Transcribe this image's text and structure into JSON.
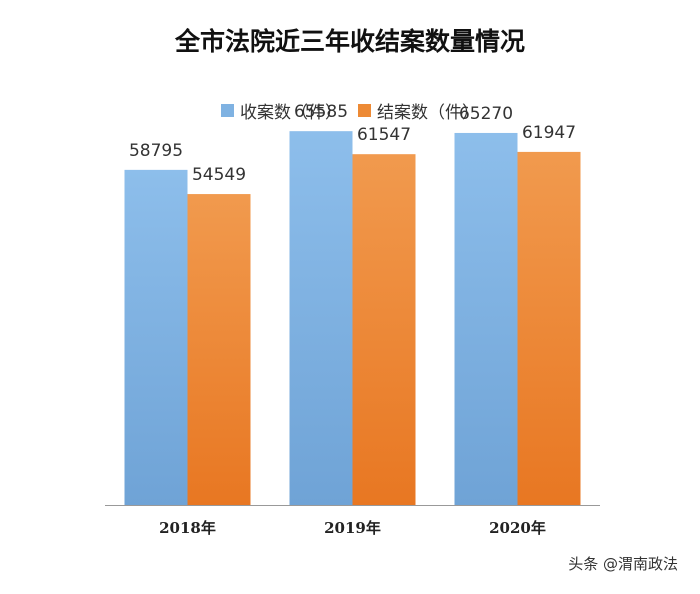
{
  "title": "全市法院近三年收结案数量情况",
  "watermark": "头条 @渭南政法",
  "colors": {
    "received": "#7FB2E2",
    "closed": "#ED8A35",
    "axis": "#999999"
  },
  "chart_data": {
    "type": "bar",
    "title": "全市法院近三年收结案数量情况",
    "categories": [
      "2018年",
      "2019年",
      "2020年"
    ],
    "series": [
      {
        "name": "收案数（件）",
        "values": [
          58795,
          65585,
          65270
        ]
      },
      {
        "name": "结案数（件）",
        "values": [
          54549,
          61547,
          61947
        ]
      }
    ],
    "ylim": [
      0,
      70000
    ],
    "grid": false,
    "legend_position": "top-center"
  }
}
